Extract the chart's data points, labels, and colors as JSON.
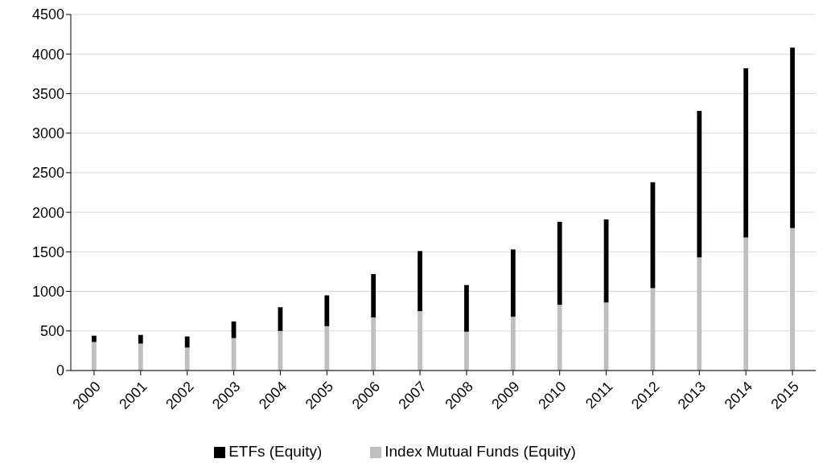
{
  "chart_data": {
    "type": "bar",
    "stacked": true,
    "categories": [
      "2000",
      "2001",
      "2002",
      "2003",
      "2004",
      "2005",
      "2006",
      "2007",
      "2008",
      "2009",
      "2010",
      "2011",
      "2012",
      "2013",
      "2014",
      "2015"
    ],
    "series": [
      {
        "name": "Index Mutual Funds (Equity)",
        "color": "#bfbfbf",
        "values": [
          360,
          340,
          290,
          410,
          500,
          560,
          670,
          750,
          490,
          680,
          830,
          860,
          1040,
          1430,
          1680,
          1800
        ]
      },
      {
        "name": "ETFs (Equity)",
        "color": "#000000",
        "values": [
          80,
          110,
          140,
          210,
          300,
          390,
          550,
          760,
          590,
          850,
          1050,
          1050,
          1340,
          1850,
          2140,
          2280
        ]
      }
    ],
    "ylim": [
      0,
      4500
    ],
    "yticks": [
      0,
      500,
      1000,
      1500,
      2000,
      2500,
      3000,
      3500,
      4000,
      4500
    ],
    "grid": "y",
    "legend": "bottom"
  }
}
